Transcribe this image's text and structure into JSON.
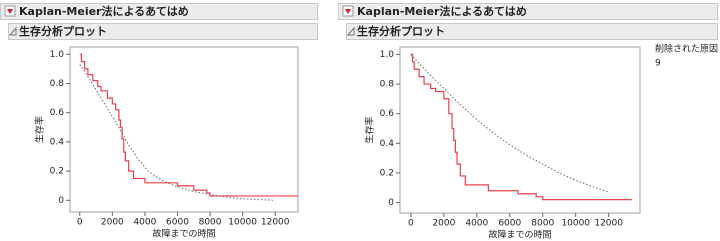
{
  "chart_data": [
    {
      "type": "line",
      "panel_title": "Kaplan-Meier法によるあてはめ",
      "section_title": "生存分析プロット",
      "x_label": "故障までの時間",
      "y_label": "生存率",
      "xlim": [
        -600,
        13400
      ],
      "ylim": [
        -0.08,
        1.05
      ],
      "xticks": [
        0,
        2000,
        4000,
        6000,
        8000,
        10000,
        12000
      ],
      "yticks": [
        0,
        0.2,
        0.4,
        0.6,
        0.8,
        {
          "value": 1,
          "label": "1.0"
        }
      ],
      "series": [
        {
          "line_style": "step",
          "color": "#e8404a",
          "x": [
            0,
            100,
            300,
            500,
            800,
            1100,
            1300,
            1700,
            2000,
            2200,
            2400,
            2500,
            2600,
            2700,
            2800,
            3000,
            3300,
            4000,
            5500,
            6000,
            7000,
            7800,
            8000,
            13400
          ],
          "values": [
            1.0,
            0.95,
            0.9,
            0.86,
            0.82,
            0.78,
            0.75,
            0.7,
            0.66,
            0.62,
            0.55,
            0.5,
            0.42,
            0.33,
            0.27,
            0.2,
            0.15,
            0.12,
            0.12,
            0.1,
            0.07,
            0.05,
            0.03,
            0.03
          ]
        },
        {
          "line_style": "dotted",
          "color": "#666666",
          "x": [
            0,
            600,
            1200,
            1800,
            2400,
            3000,
            3600,
            4200,
            5000,
            5800,
            7000,
            8500,
            10000,
            12000
          ],
          "values": [
            0.93,
            0.83,
            0.72,
            0.61,
            0.5,
            0.38,
            0.28,
            0.2,
            0.14,
            0.1,
            0.06,
            0.03,
            0.01,
            0.0
          ]
        }
      ]
    },
    {
      "type": "line",
      "panel_title": "Kaplan-Meier法によるあてはめ",
      "section_title": "生存分析プロット",
      "x_label": "故障までの時間",
      "y_label": "生存率",
      "legend_title": "削除された原因",
      "legend_value": "9",
      "xlim": [
        -660,
        13900
      ],
      "ylim": [
        -0.07,
        1.05
      ],
      "xticks": [
        0,
        2000,
        4000,
        6000,
        8000,
        10000,
        12000
      ],
      "yticks": [
        0,
        0.2,
        0.4,
        0.6,
        0.8,
        {
          "value": 1,
          "label": "1.0"
        }
      ],
      "series": [
        {
          "line_style": "step",
          "color": "#e8404a",
          "x": [
            0,
            100,
            200,
            500,
            800,
            1200,
            1500,
            2000,
            2300,
            2500,
            2600,
            2700,
            2800,
            3000,
            3300,
            4700,
            6500,
            7600,
            8000,
            13400
          ],
          "values": [
            1.0,
            0.95,
            0.9,
            0.85,
            0.8,
            0.77,
            0.75,
            0.7,
            0.6,
            0.5,
            0.42,
            0.34,
            0.26,
            0.18,
            0.12,
            0.08,
            0.06,
            0.04,
            0.02,
            0.02
          ]
        },
        {
          "line_style": "dotted",
          "color": "#666666",
          "x": [
            0,
            1000,
            2000,
            3000,
            4000,
            5000,
            6000,
            7000,
            8000,
            9000,
            10000,
            11000,
            12000
          ],
          "values": [
            1.0,
            0.88,
            0.77,
            0.66,
            0.56,
            0.47,
            0.39,
            0.32,
            0.26,
            0.2,
            0.15,
            0.11,
            0.07
          ]
        }
      ]
    }
  ]
}
